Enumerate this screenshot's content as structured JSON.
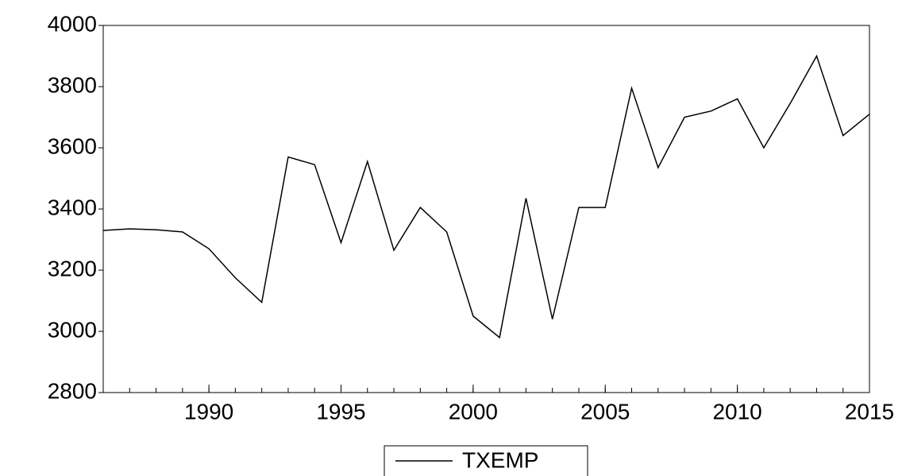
{
  "chart_data": {
    "type": "line",
    "x": [
      1986,
      1987,
      1988,
      1989,
      1990,
      1991,
      1992,
      1993,
      1994,
      1995,
      1996,
      1997,
      1998,
      1999,
      2000,
      2001,
      2002,
      2003,
      2004,
      2005,
      2006,
      2007,
      2008,
      2009,
      2010,
      2011,
      2012,
      2013,
      2014,
      2015
    ],
    "series": [
      {
        "name": "TXEMP",
        "color": "#000000",
        "values": [
          3330,
          3335,
          3332,
          3325,
          3270,
          3175,
          3095,
          3570,
          3545,
          3290,
          3555,
          3265,
          3405,
          3325,
          3050,
          2980,
          3435,
          3040,
          3405,
          3405,
          3795,
          3535,
          3700,
          3720,
          3760,
          3600,
          3745,
          3900,
          3640,
          3710
        ]
      }
    ],
    "xlim": [
      1986,
      2015
    ],
    "xticks": [
      1990,
      1995,
      2000,
      2005,
      2010,
      2015
    ],
    "ylim": [
      2800,
      4000
    ],
    "yticks": [
      2800,
      3000,
      3200,
      3400,
      3600,
      3800,
      4000
    ],
    "grid": false,
    "legend": "bottom"
  }
}
